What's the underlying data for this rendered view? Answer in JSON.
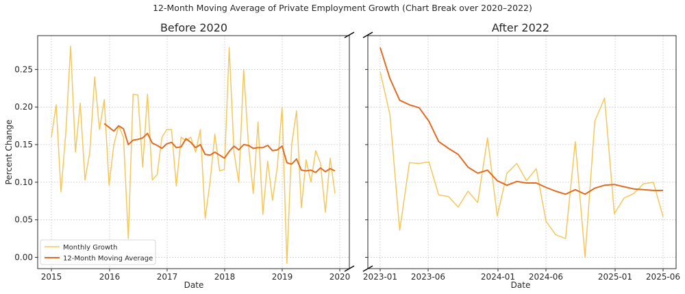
{
  "chart_data": {
    "type": "line",
    "title": "12-Month Moving Average of Private Employment Growth (Chart Break over 2020–2022)",
    "ylabel": "Percent Change",
    "xlabel": "Date",
    "ylim": [
      -0.015,
      0.295
    ],
    "y_ticks": [
      "0.00",
      "0.05",
      "0.10",
      "0.15",
      "0.20",
      "0.25"
    ],
    "legend": {
      "position": "lower-left",
      "entries": [
        "Monthly Growth",
        "12-Month Moving Average"
      ]
    },
    "colors": {
      "monthly": "#f5c75a",
      "moving_average": "#e06a1f"
    },
    "panels": [
      {
        "title": "Before 2020",
        "x_ticks": [
          "2015",
          "2016",
          "2017",
          "2018",
          "2019",
          "2020"
        ],
        "x_start": "2015-01",
        "series": [
          {
            "name": "Monthly Growth",
            "values": [
              0.16,
              0.203,
              0.087,
              0.165,
              0.281,
              0.14,
              0.205,
              0.103,
              0.14,
              0.24,
              0.17,
              0.21,
              0.096,
              0.15,
              0.175,
              0.16,
              0.025,
              0.217,
              0.216,
              0.12,
              0.217,
              0.103,
              0.11,
              0.16,
              0.17,
              0.17,
              0.095,
              0.16,
              0.155,
              0.16,
              0.14,
              0.17,
              0.052,
              0.1,
              0.164,
              0.115,
              0.117,
              0.279,
              0.14,
              0.1,
              0.25,
              0.15,
              0.085,
              0.18,
              0.057,
              0.128,
              0.076,
              0.12,
              0.2,
              -0.008,
              0.15,
              0.195,
              0.066,
              0.13,
              0.1,
              0.142,
              0.125,
              0.06,
              0.132,
              0.085
            ]
          },
          {
            "name": "12-Month Moving Average",
            "values": [
              null,
              null,
              null,
              null,
              null,
              null,
              null,
              null,
              null,
              null,
              null,
              0.178,
              0.173,
              0.168,
              0.175,
              0.171,
              0.15,
              0.156,
              0.157,
              0.159,
              0.165,
              0.152,
              0.149,
              0.145,
              0.151,
              0.153,
              0.146,
              0.147,
              0.158,
              0.153,
              0.146,
              0.15,
              0.137,
              0.136,
              0.14,
              0.136,
              0.132,
              0.141,
              0.148,
              0.143,
              0.15,
              0.149,
              0.145,
              0.146,
              0.146,
              0.149,
              0.142,
              0.143,
              0.148,
              0.126,
              0.124,
              0.131,
              0.116,
              0.115,
              0.116,
              0.113,
              0.119,
              0.114,
              0.118,
              0.115
            ]
          }
        ]
      },
      {
        "title": "After 2022",
        "x_ticks": [
          "2023-01",
          "2023-06",
          "2024-01",
          "2024-06",
          "2025-01",
          "2025-06"
        ],
        "x_start": "2023-01",
        "series": [
          {
            "name": "Monthly Growth",
            "values": [
              0.247,
              0.19,
              0.036,
              0.126,
              0.125,
              0.127,
              0.083,
              0.081,
              0.067,
              0.088,
              0.073,
              0.159,
              0.055,
              0.112,
              0.125,
              0.102,
              0.118,
              0.048,
              0.03,
              0.025,
              0.154,
              0.0,
              0.181,
              0.212,
              0.058,
              0.079,
              0.085,
              0.098,
              0.1,
              0.054
            ]
          },
          {
            "name": "12-Month Moving Average",
            "values": [
              0.279,
              0.238,
              0.209,
              0.203,
              0.199,
              0.181,
              0.154,
              0.145,
              0.137,
              0.12,
              0.112,
              0.116,
              0.102,
              0.096,
              0.101,
              0.099,
              0.099,
              0.093,
              0.088,
              0.084,
              0.09,
              0.084,
              0.092,
              0.096,
              0.097,
              0.094,
              0.091,
              0.09,
              0.089,
              0.089
            ]
          }
        ]
      }
    ]
  }
}
